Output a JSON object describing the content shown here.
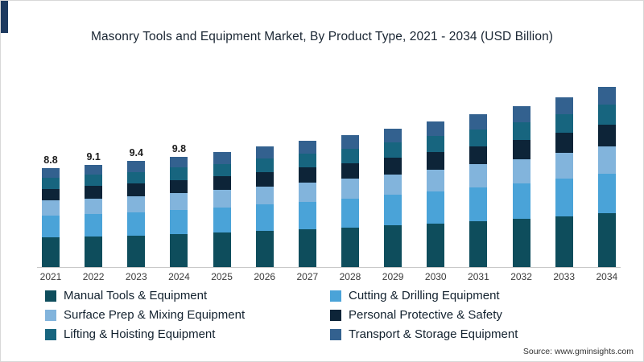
{
  "accent_color": "#1d3a5f",
  "title": "Masonry Tools and Equipment Market, By Product Type, 2021 - 2034 (USD Billion)",
  "source": "Source: www.gminsights.com",
  "chart_data": {
    "type": "bar",
    "stacked": true,
    "grid": false,
    "legend_position": "bottom",
    "xlabel": "",
    "ylabel": "",
    "ylim": [
      0,
      17
    ],
    "categories": [
      "2021",
      "2022",
      "2023",
      "2024",
      "2025",
      "2026",
      "2027",
      "2028",
      "2029",
      "2030",
      "2031",
      "2032",
      "2033",
      "2034"
    ],
    "totals": [
      8.8,
      9.1,
      9.4,
      9.8,
      10.2,
      10.7,
      11.2,
      11.7,
      12.3,
      12.9,
      13.6,
      14.3,
      15.1,
      16.0
    ],
    "bar_labels": [
      "8.8",
      "9.1",
      "9.4",
      "9.8",
      "",
      "",
      "",
      "",
      "",
      "",
      "",
      "",
      "",
      ""
    ],
    "series": [
      {
        "name": "Manual Tools & Equipment",
        "color": "#0e4d5c",
        "values": [
          2.64,
          2.73,
          2.82,
          2.94,
          3.06,
          3.21,
          3.36,
          3.51,
          3.69,
          3.87,
          4.08,
          4.29,
          4.53,
          4.8
        ]
      },
      {
        "name": "Cutting & Drilling Equipment",
        "color": "#4aa3d8",
        "values": [
          1.94,
          2.0,
          2.07,
          2.16,
          2.24,
          2.35,
          2.46,
          2.57,
          2.71,
          2.84,
          2.99,
          3.15,
          3.32,
          3.52
        ]
      },
      {
        "name": "Surface Prep & Mixing Equipment",
        "color": "#82b4dc",
        "values": [
          1.32,
          1.37,
          1.41,
          1.47,
          1.53,
          1.61,
          1.68,
          1.76,
          1.85,
          1.94,
          2.04,
          2.15,
          2.27,
          2.4
        ]
      },
      {
        "name": "Personal Protective & Safety",
        "color": "#0d2438",
        "values": [
          1.06,
          1.09,
          1.13,
          1.18,
          1.22,
          1.28,
          1.34,
          1.4,
          1.48,
          1.55,
          1.63,
          1.72,
          1.81,
          1.92
        ]
      },
      {
        "name": "Lifting & Hoisting Equipment",
        "color": "#17657f",
        "values": [
          0.97,
          1.0,
          1.03,
          1.08,
          1.12,
          1.18,
          1.23,
          1.29,
          1.35,
          1.42,
          1.5,
          1.57,
          1.66,
          1.76
        ]
      },
      {
        "name": "Transport & Storage Equipment",
        "color": "#33618f",
        "values": [
          0.88,
          0.91,
          0.94,
          0.98,
          1.02,
          1.07,
          1.12,
          1.17,
          1.23,
          1.29,
          1.36,
          1.43,
          1.51,
          1.6
        ]
      }
    ]
  }
}
